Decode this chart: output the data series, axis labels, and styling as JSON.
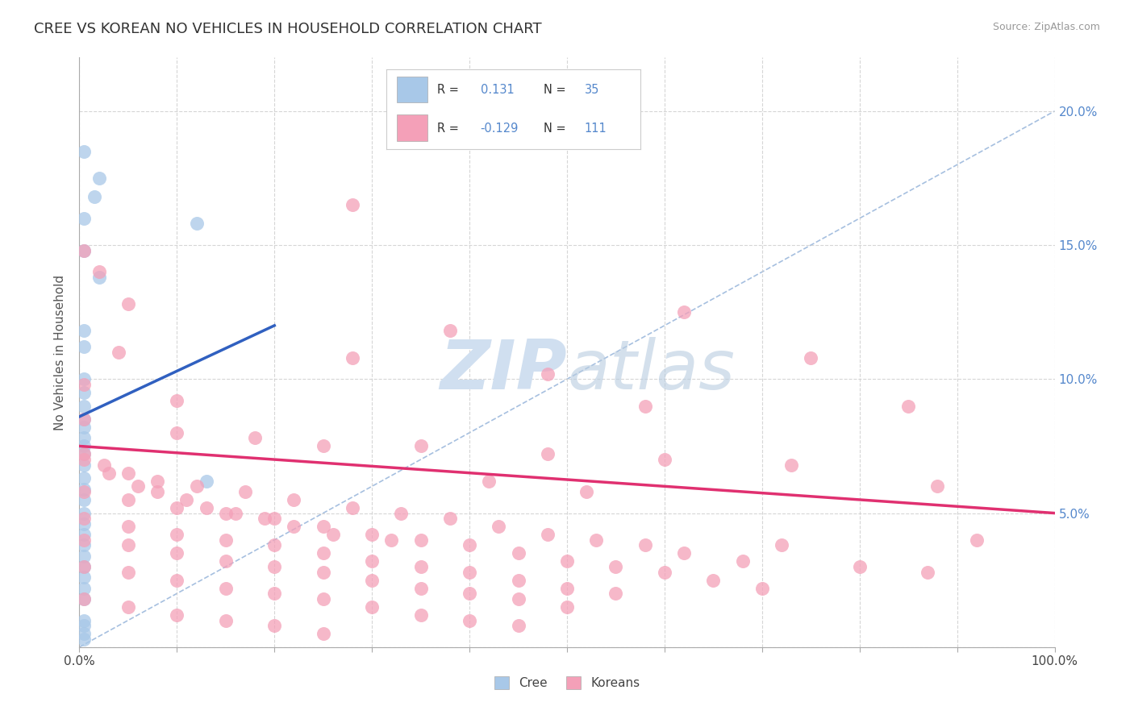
{
  "title": "CREE VS KOREAN NO VEHICLES IN HOUSEHOLD CORRELATION CHART",
  "source": "Source: ZipAtlas.com",
  "ylabel": "No Vehicles in Household",
  "xlim": [
    0.0,
    1.0
  ],
  "ylim": [
    0.0,
    0.22
  ],
  "xticks": [
    0.0,
    0.1,
    0.2,
    0.3,
    0.4,
    0.5,
    0.6,
    0.7,
    0.8,
    0.9,
    1.0
  ],
  "yticks": [
    0.0,
    0.05,
    0.1,
    0.15,
    0.2
  ],
  "xtick_labels": [
    "0.0%",
    "",
    "",
    "",
    "",
    "",
    "",
    "",
    "",
    "",
    "100.0%"
  ],
  "ytick_labels_right": [
    "",
    "5.0%",
    "10.0%",
    "15.0%",
    "20.0%"
  ],
  "cree_color": "#a8c8e8",
  "korean_color": "#f4a0b8",
  "cree_line_color": "#3060c0",
  "korean_line_color": "#e03070",
  "diagonal_color": "#90b0d8",
  "watermark_color": "#d0dff0",
  "title_color": "#333333",
  "source_color": "#999999",
  "ytick_color": "#5588cc",
  "cree_scatter": [
    [
      0.005,
      0.185
    ],
    [
      0.02,
      0.175
    ],
    [
      0.015,
      0.168
    ],
    [
      0.005,
      0.16
    ],
    [
      0.12,
      0.158
    ],
    [
      0.005,
      0.148
    ],
    [
      0.02,
      0.138
    ],
    [
      0.005,
      0.118
    ],
    [
      0.005,
      0.112
    ],
    [
      0.005,
      0.1
    ],
    [
      0.005,
      0.09
    ],
    [
      0.005,
      0.082
    ],
    [
      0.005,
      0.075
    ],
    [
      0.005,
      0.072
    ],
    [
      0.005,
      0.068
    ],
    [
      0.005,
      0.063
    ],
    [
      0.005,
      0.059
    ],
    [
      0.13,
      0.062
    ],
    [
      0.005,
      0.055
    ],
    [
      0.005,
      0.05
    ],
    [
      0.005,
      0.046
    ],
    [
      0.005,
      0.042
    ],
    [
      0.005,
      0.038
    ],
    [
      0.005,
      0.034
    ],
    [
      0.005,
      0.03
    ],
    [
      0.005,
      0.026
    ],
    [
      0.005,
      0.022
    ],
    [
      0.005,
      0.018
    ],
    [
      0.005,
      0.085
    ],
    [
      0.005,
      0.078
    ],
    [
      0.005,
      0.01
    ],
    [
      0.005,
      0.008
    ],
    [
      0.005,
      0.005
    ],
    [
      0.005,
      0.003
    ],
    [
      0.005,
      0.095
    ]
  ],
  "korean_scatter": [
    [
      0.28,
      0.165
    ],
    [
      0.005,
      0.148
    ],
    [
      0.02,
      0.14
    ],
    [
      0.05,
      0.128
    ],
    [
      0.38,
      0.118
    ],
    [
      0.04,
      0.11
    ],
    [
      0.28,
      0.108
    ],
    [
      0.48,
      0.102
    ],
    [
      0.75,
      0.108
    ],
    [
      0.62,
      0.125
    ],
    [
      0.005,
      0.098
    ],
    [
      0.1,
      0.092
    ],
    [
      0.58,
      0.09
    ],
    [
      0.85,
      0.09
    ],
    [
      0.005,
      0.085
    ],
    [
      0.1,
      0.08
    ],
    [
      0.18,
      0.078
    ],
    [
      0.25,
      0.075
    ],
    [
      0.35,
      0.075
    ],
    [
      0.48,
      0.072
    ],
    [
      0.6,
      0.07
    ],
    [
      0.73,
      0.068
    ],
    [
      0.005,
      0.072
    ],
    [
      0.025,
      0.068
    ],
    [
      0.05,
      0.065
    ],
    [
      0.08,
      0.062
    ],
    [
      0.12,
      0.06
    ],
    [
      0.17,
      0.058
    ],
    [
      0.22,
      0.055
    ],
    [
      0.28,
      0.052
    ],
    [
      0.33,
      0.05
    ],
    [
      0.38,
      0.048
    ],
    [
      0.43,
      0.045
    ],
    [
      0.48,
      0.042
    ],
    [
      0.53,
      0.04
    ],
    [
      0.58,
      0.038
    ],
    [
      0.62,
      0.035
    ],
    [
      0.68,
      0.032
    ],
    [
      0.005,
      0.058
    ],
    [
      0.05,
      0.055
    ],
    [
      0.1,
      0.052
    ],
    [
      0.15,
      0.05
    ],
    [
      0.2,
      0.048
    ],
    [
      0.25,
      0.045
    ],
    [
      0.3,
      0.042
    ],
    [
      0.35,
      0.04
    ],
    [
      0.4,
      0.038
    ],
    [
      0.45,
      0.035
    ],
    [
      0.5,
      0.032
    ],
    [
      0.55,
      0.03
    ],
    [
      0.6,
      0.028
    ],
    [
      0.65,
      0.025
    ],
    [
      0.7,
      0.022
    ],
    [
      0.005,
      0.048
    ],
    [
      0.05,
      0.045
    ],
    [
      0.1,
      0.042
    ],
    [
      0.15,
      0.04
    ],
    [
      0.2,
      0.038
    ],
    [
      0.25,
      0.035
    ],
    [
      0.3,
      0.032
    ],
    [
      0.35,
      0.03
    ],
    [
      0.4,
      0.028
    ],
    [
      0.45,
      0.025
    ],
    [
      0.5,
      0.022
    ],
    [
      0.55,
      0.02
    ],
    [
      0.005,
      0.04
    ],
    [
      0.05,
      0.038
    ],
    [
      0.1,
      0.035
    ],
    [
      0.15,
      0.032
    ],
    [
      0.2,
      0.03
    ],
    [
      0.25,
      0.028
    ],
    [
      0.3,
      0.025
    ],
    [
      0.35,
      0.022
    ],
    [
      0.4,
      0.02
    ],
    [
      0.45,
      0.018
    ],
    [
      0.5,
      0.015
    ],
    [
      0.005,
      0.03
    ],
    [
      0.05,
      0.028
    ],
    [
      0.1,
      0.025
    ],
    [
      0.15,
      0.022
    ],
    [
      0.2,
      0.02
    ],
    [
      0.25,
      0.018
    ],
    [
      0.3,
      0.015
    ],
    [
      0.35,
      0.012
    ],
    [
      0.4,
      0.01
    ],
    [
      0.45,
      0.008
    ],
    [
      0.87,
      0.028
    ],
    [
      0.005,
      0.018
    ],
    [
      0.05,
      0.015
    ],
    [
      0.1,
      0.012
    ],
    [
      0.15,
      0.01
    ],
    [
      0.2,
      0.008
    ],
    [
      0.25,
      0.005
    ],
    [
      0.005,
      0.07
    ],
    [
      0.03,
      0.065
    ],
    [
      0.06,
      0.06
    ],
    [
      0.08,
      0.058
    ],
    [
      0.11,
      0.055
    ],
    [
      0.13,
      0.052
    ],
    [
      0.16,
      0.05
    ],
    [
      0.19,
      0.048
    ],
    [
      0.22,
      0.045
    ],
    [
      0.26,
      0.042
    ],
    [
      0.32,
      0.04
    ],
    [
      0.42,
      0.062
    ],
    [
      0.52,
      0.058
    ],
    [
      0.88,
      0.06
    ],
    [
      0.92,
      0.04
    ],
    [
      0.72,
      0.038
    ],
    [
      0.8,
      0.03
    ]
  ],
  "cree_trend_x": [
    0.0,
    0.2
  ],
  "cree_trend_y": [
    0.086,
    0.12
  ],
  "korean_trend_x": [
    0.0,
    1.0
  ],
  "korean_trend_y": [
    0.075,
    0.05
  ]
}
